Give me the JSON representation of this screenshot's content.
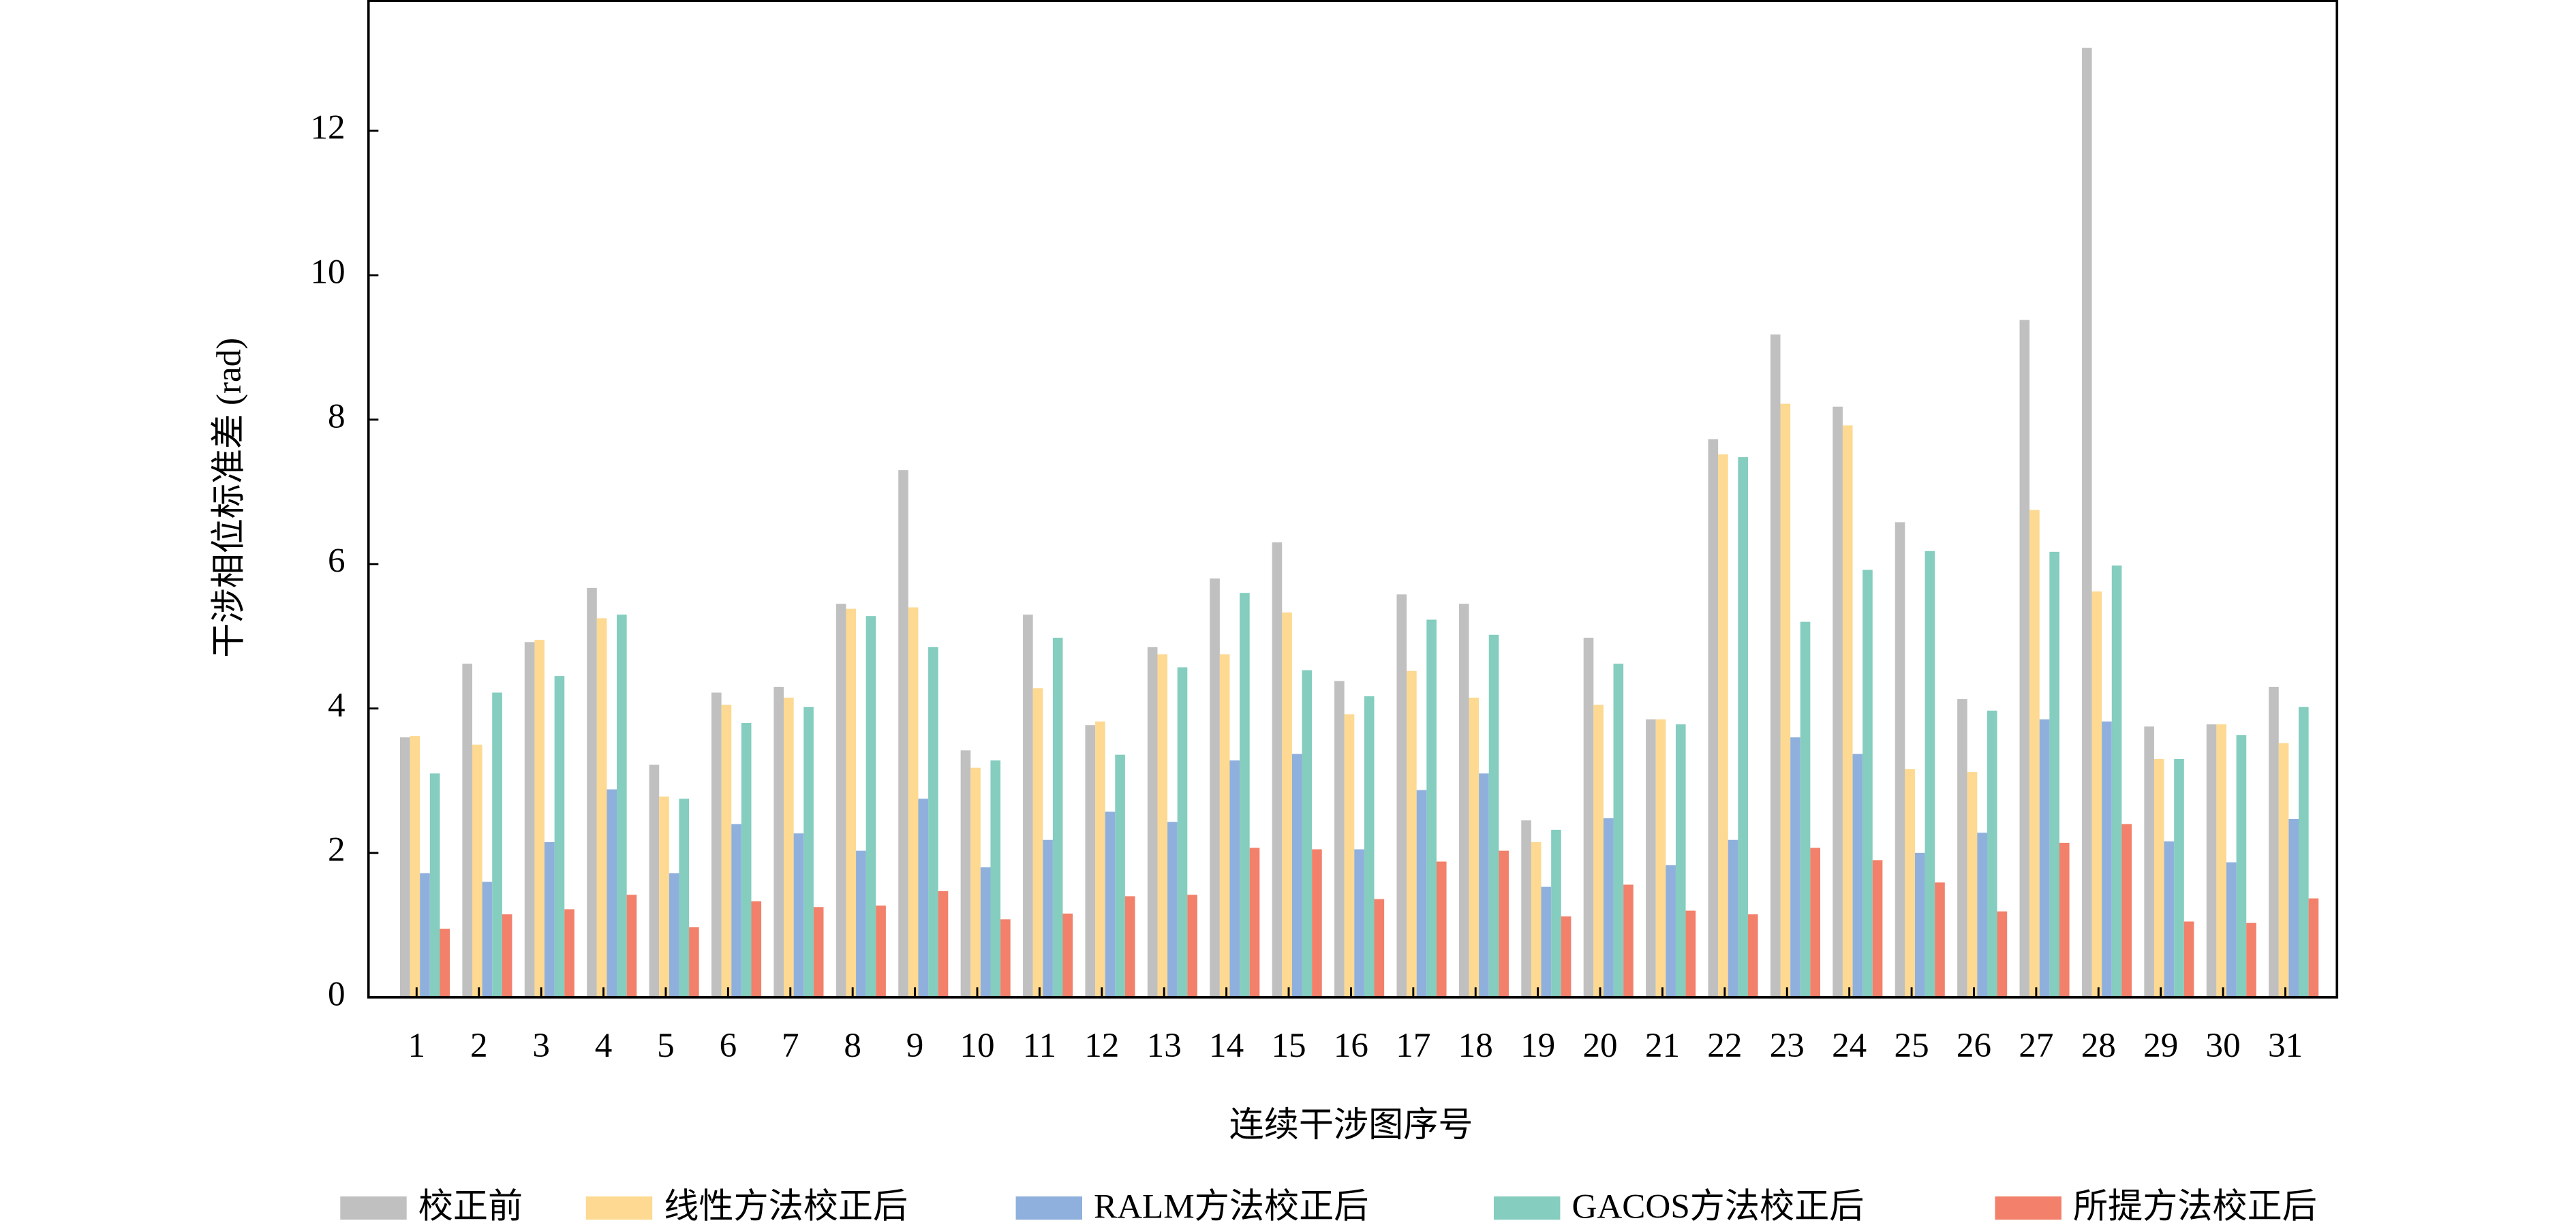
{
  "chart_data": {
    "type": "bar",
    "x_label": "连续干涉图序号",
    "y_label": "干涉相位标准差 (rad)",
    "categories": [
      "1",
      "2",
      "3",
      "4",
      "5",
      "6",
      "7",
      "8",
      "9",
      "10",
      "11",
      "12",
      "13",
      "14",
      "15",
      "16",
      "17",
      "18",
      "19",
      "20",
      "21",
      "22",
      "23",
      "24",
      "25",
      "26",
      "27",
      "28",
      "29",
      "30",
      "31"
    ],
    "series": [
      {
        "name": "校正前",
        "color": "#c0c0c0",
        "values": [
          3.6,
          4.62,
          4.92,
          5.67,
          3.22,
          4.22,
          4.3,
          5.45,
          7.3,
          3.42,
          5.3,
          3.77,
          4.85,
          5.8,
          6.3,
          4.38,
          5.58,
          5.45,
          2.45,
          4.98,
          3.85,
          7.73,
          9.18,
          8.18,
          6.58,
          4.13,
          9.38,
          13.15,
          3.75,
          3.78,
          4.3
        ]
      },
      {
        "name": "线性方法校正后",
        "color": "#fdd992",
        "values": [
          3.62,
          3.5,
          4.95,
          5.25,
          2.78,
          4.05,
          4.15,
          5.38,
          5.4,
          3.18,
          4.28,
          3.82,
          4.75,
          4.75,
          5.33,
          3.92,
          4.52,
          4.15,
          2.15,
          4.05,
          3.85,
          7.52,
          8.22,
          7.92,
          3.16,
          3.12,
          6.75,
          5.62,
          3.3,
          3.78,
          3.52
        ]
      },
      {
        "name": "RALM方法校正后",
        "color": "#8fb0dd",
        "values": [
          1.72,
          1.6,
          2.15,
          2.88,
          1.72,
          2.4,
          2.27,
          2.03,
          2.75,
          1.8,
          2.18,
          2.57,
          2.43,
          3.28,
          3.37,
          2.05,
          2.87,
          3.1,
          1.53,
          2.48,
          1.83,
          2.18,
          3.6,
          3.37,
          2.0,
          2.28,
          3.85,
          3.82,
          2.16,
          1.87,
          2.47
        ]
      },
      {
        "name": "GACOS方法校正后",
        "color": "#84cdbf",
        "values": [
          3.1,
          4.22,
          4.45,
          5.3,
          2.75,
          3.8,
          4.02,
          5.28,
          4.85,
          3.28,
          4.98,
          3.36,
          4.57,
          5.6,
          4.53,
          4.17,
          5.23,
          5.02,
          2.32,
          4.62,
          3.78,
          7.48,
          5.2,
          5.92,
          6.18,
          3.97,
          6.17,
          5.98,
          3.3,
          3.63,
          4.02
        ]
      },
      {
        "name": "所提方法校正后",
        "color": "#f2806a",
        "values": [
          0.95,
          1.15,
          1.22,
          1.42,
          0.97,
          1.33,
          1.25,
          1.27,
          1.47,
          1.08,
          1.16,
          1.4,
          1.42,
          2.07,
          2.05,
          1.36,
          1.88,
          2.03,
          1.12,
          1.56,
          1.2,
          1.15,
          2.07,
          1.9,
          1.59,
          1.19,
          2.14,
          2.4,
          1.05,
          1.03,
          1.37
        ]
      }
    ],
    "ylim": [
      0,
      13.8
    ],
    "yticks": [
      0,
      2,
      4,
      6,
      8,
      10,
      12
    ],
    "legend": "bottom"
  }
}
